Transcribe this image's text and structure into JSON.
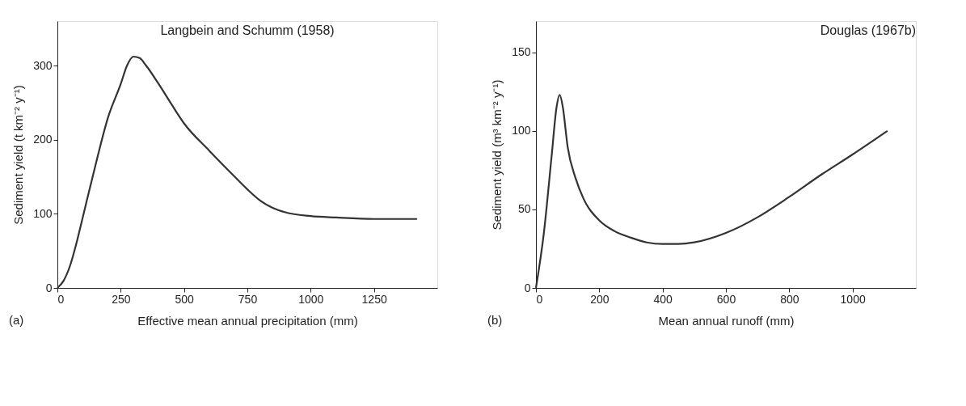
{
  "chart_data": [
    {
      "type": "line",
      "title": "Langbein and Schumm (1958)",
      "xlabel": "Effective mean annual precipitation (mm)",
      "ylabel": "Sediment yield (t km⁻² y⁻¹)",
      "annotations": [
        "(a)"
      ],
      "series": [
        {
          "color": "#333333",
          "x": [
            0,
            25,
            50,
            75,
            100,
            150,
            200,
            250,
            275,
            300,
            325,
            350,
            400,
            450,
            500,
            600,
            700,
            750,
            800,
            850,
            900,
            1000,
            1100,
            1250,
            1420
          ],
          "values": [
            0,
            10,
            30,
            60,
            95,
            165,
            230,
            275,
            300,
            312,
            310,
            300,
            275,
            248,
            222,
            185,
            150,
            133,
            118,
            108,
            102,
            97,
            95,
            93,
            93
          ]
        }
      ],
      "xlim": [
        0,
        1500
      ],
      "xticks": [
        0,
        250,
        500,
        750,
        1000,
        1250
      ],
      "ylim": [
        0,
        360
      ],
      "yticks": [
        0,
        100,
        200,
        300
      ],
      "grid": false,
      "legend": false
    },
    {
      "type": "line",
      "title": "Douglas (1967b)",
      "xlabel": "Mean annual runoff (mm)",
      "ylabel": "Sediment yield (m³ km⁻² y⁻¹)",
      "annotations": [
        "(b)"
      ],
      "series": [
        {
          "color": "#333333",
          "x": [
            0,
            25,
            50,
            65,
            75,
            85,
            100,
            125,
            150,
            200,
            250,
            300,
            350,
            400,
            450,
            500,
            600,
            700,
            800,
            900,
            1000,
            1110
          ],
          "values": [
            0,
            35,
            85,
            115,
            123,
            115,
            90,
            70,
            57,
            43,
            36,
            32,
            29,
            28,
            28,
            29,
            35,
            45,
            58,
            72,
            85,
            100
          ]
        }
      ],
      "xlim": [
        0,
        1200
      ],
      "xticks": [
        0,
        200,
        400,
        600,
        800,
        1000
      ],
      "ylim": [
        0,
        170
      ],
      "yticks": [
        0,
        50,
        100,
        150
      ],
      "grid": false,
      "legend": false
    }
  ]
}
